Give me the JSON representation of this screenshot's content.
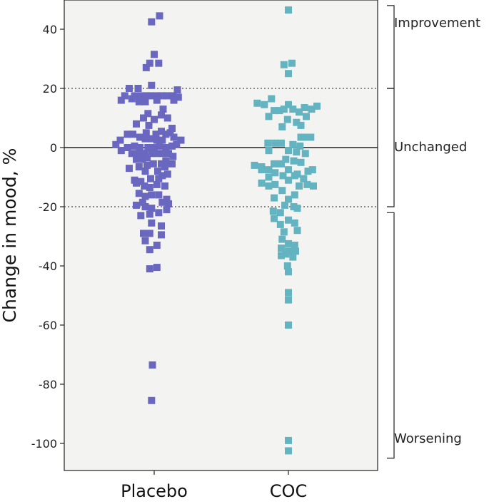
{
  "chart_data": {
    "type": "scatter",
    "ylabel": "Change in mood, %",
    "ylim": [
      -110,
      48
    ],
    "yticks": [
      40,
      20,
      0,
      -20,
      -40,
      -60,
      -80,
      -100
    ],
    "categories": [
      "Placebo",
      "COC"
    ],
    "reference_lines": [
      {
        "y": 20,
        "style": "dotted"
      },
      {
        "y": 0,
        "style": "solid"
      },
      {
        "y": -20,
        "style": "dotted"
      }
    ],
    "bands": [
      {
        "label": "Improvement",
        "from": 20,
        "to": 48
      },
      {
        "label": "Unchanged",
        "from": -20,
        "to": 20
      },
      {
        "label": "Worsening",
        "from": -105,
        "to": -22
      }
    ],
    "colors": {
      "Placebo": "#6a67c0",
      "COC": "#63b3c1",
      "plot_background": "#f3f3f2"
    },
    "series": [
      {
        "name": "Placebo",
        "color": "#6a67c0",
        "points": [
          [
            0.06,
            44.5
          ],
          [
            -0.03,
            42.5
          ],
          [
            0.0,
            31.5
          ],
          [
            -0.05,
            28.5
          ],
          [
            0.05,
            28.5
          ],
          [
            -0.09,
            27
          ],
          [
            -0.03,
            21
          ],
          [
            -0.28,
            20
          ],
          [
            -0.18,
            20
          ],
          [
            0.26,
            19.5
          ],
          [
            -0.33,
            17.5
          ],
          [
            -0.22,
            17.5
          ],
          [
            -0.15,
            17.5
          ],
          [
            -0.09,
            17.5
          ],
          [
            -0.04,
            17.5
          ],
          [
            0.03,
            17.5
          ],
          [
            0.09,
            17.5
          ],
          [
            0.14,
            17.5
          ],
          [
            0.21,
            17.5
          ],
          [
            0.27,
            17
          ],
          [
            -0.25,
            16.5
          ],
          [
            -0.37,
            16
          ],
          [
            0.22,
            16
          ],
          [
            0.03,
            16
          ],
          [
            -0.1,
            15.5
          ],
          [
            -0.17,
            15.5
          ],
          [
            0.1,
            13
          ],
          [
            -0.07,
            11.5
          ],
          [
            0.08,
            11
          ],
          [
            0.15,
            10
          ],
          [
            -0.12,
            10
          ],
          [
            0.0,
            9.5
          ],
          [
            -0.2,
            8
          ],
          [
            -0.06,
            7.5
          ],
          [
            0.2,
            6.5
          ],
          [
            0.08,
            5.5
          ],
          [
            0.18,
            5
          ],
          [
            -0.09,
            5
          ],
          [
            -0.24,
            4.5
          ],
          [
            -0.3,
            4.5
          ],
          [
            0.02,
            4.5
          ],
          [
            0.13,
            4.5
          ],
          [
            0.22,
            3.5
          ],
          [
            -0.16,
            3.5
          ],
          [
            -0.1,
            3
          ],
          [
            -0.03,
            3
          ],
          [
            0.03,
            2.5
          ],
          [
            -0.38,
            2.5
          ],
          [
            0.09,
            2.5
          ],
          [
            0.3,
            2.5
          ],
          [
            -0.43,
            1
          ],
          [
            -0.37,
            -1
          ],
          [
            -0.3,
            0
          ],
          [
            -0.22,
            0.5
          ],
          [
            -0.16,
            0
          ],
          [
            -0.07,
            0
          ],
          [
            0.0,
            0
          ],
          [
            0.06,
            0.5
          ],
          [
            0.13,
            0
          ],
          [
            0.2,
            0.5
          ],
          [
            0.25,
            1
          ],
          [
            -0.25,
            -2
          ],
          [
            -0.18,
            -2
          ],
          [
            -0.11,
            -2
          ],
          [
            -0.03,
            -2
          ],
          [
            0.03,
            -2
          ],
          [
            0.1,
            -2
          ],
          [
            0.16,
            -2
          ],
          [
            0.21,
            -3
          ],
          [
            -0.08,
            -3.5
          ],
          [
            -0.13,
            -4
          ],
          [
            -0.2,
            -4
          ],
          [
            0.13,
            -4.5
          ],
          [
            -0.01,
            -5.5
          ],
          [
            0.08,
            -5.5
          ],
          [
            0.2,
            -5.5
          ],
          [
            -0.08,
            -6
          ],
          [
            -0.17,
            -6.5
          ],
          [
            0.12,
            -6.5
          ],
          [
            -0.28,
            -7
          ],
          [
            0.04,
            -8
          ],
          [
            -0.1,
            -8
          ],
          [
            0.15,
            -9
          ],
          [
            0.09,
            -9.5
          ],
          [
            -0.04,
            -10.5
          ],
          [
            0.05,
            -10.5
          ],
          [
            -0.22,
            -11
          ],
          [
            -0.15,
            -11.5
          ],
          [
            -0.2,
            -12
          ],
          [
            0.03,
            -12.5
          ],
          [
            -0.11,
            -13
          ],
          [
            -0.05,
            -13.5
          ],
          [
            0.12,
            -13
          ],
          [
            -0.17,
            -15.5
          ],
          [
            -0.1,
            -16.5
          ],
          [
            -0.03,
            -16
          ],
          [
            0.05,
            -16
          ],
          [
            0.14,
            -17.5
          ],
          [
            -0.13,
            -18.5
          ],
          [
            0.09,
            -18.5
          ],
          [
            0.16,
            -19
          ],
          [
            -0.2,
            -19.5
          ],
          [
            -0.1,
            -20
          ],
          [
            -0.03,
            -20.5
          ],
          [
            0.14,
            -21
          ],
          [
            0.05,
            -22
          ],
          [
            -0.05,
            -22.5
          ],
          [
            -0.15,
            -23
          ],
          [
            -0.03,
            -25.5
          ],
          [
            0.08,
            -26.5
          ],
          [
            -0.12,
            -29
          ],
          [
            -0.05,
            -29
          ],
          [
            0.08,
            -29.5
          ],
          [
            -0.1,
            -31.5
          ],
          [
            0.03,
            -33
          ],
          [
            -0.05,
            -34.5
          ],
          [
            -0.05,
            -41
          ],
          [
            0.03,
            -40.5
          ],
          [
            -0.02,
            -73.5
          ],
          [
            -0.03,
            -85.5
          ]
        ]
      },
      {
        "name": "COC",
        "color": "#63b3c1",
        "points": [
          [
            0.0,
            46.5
          ],
          [
            -0.05,
            28
          ],
          [
            0.04,
            28.5
          ],
          [
            0.0,
            25
          ],
          [
            -0.35,
            15
          ],
          [
            -0.27,
            14.5
          ],
          [
            -0.19,
            16.5
          ],
          [
            0.0,
            14.5
          ],
          [
            -0.16,
            12.5
          ],
          [
            -0.1,
            12.5
          ],
          [
            -0.05,
            13
          ],
          [
            0.05,
            13
          ],
          [
            0.12,
            12
          ],
          [
            0.18,
            13.5
          ],
          [
            0.26,
            13
          ],
          [
            0.32,
            14
          ],
          [
            -0.22,
            10.5
          ],
          [
            0.2,
            10.5
          ],
          [
            0.09,
            8.5
          ],
          [
            0.14,
            7.5
          ],
          [
            -0.07,
            7
          ],
          [
            -0.01,
            9.5
          ],
          [
            0.14,
            3.5
          ],
          [
            0.19,
            3.5
          ],
          [
            0.25,
            3.5
          ],
          [
            -0.23,
            1.5
          ],
          [
            -0.15,
            1.5
          ],
          [
            -0.08,
            1.5
          ],
          [
            0.05,
            1
          ],
          [
            0.13,
            0.5
          ],
          [
            -0.22,
            -1
          ],
          [
            0.0,
            -1
          ],
          [
            0.09,
            -1.5
          ],
          [
            0.19,
            -2
          ],
          [
            -0.03,
            -4
          ],
          [
            0.06,
            -4.5
          ],
          [
            -0.38,
            -6
          ],
          [
            -0.3,
            -6.5
          ],
          [
            -0.16,
            -5.5
          ],
          [
            -0.08,
            -5.5
          ],
          [
            0.14,
            -5
          ],
          [
            -0.3,
            -7.5
          ],
          [
            -0.22,
            -7.5
          ],
          [
            0.0,
            -7.5
          ],
          [
            0.22,
            -8
          ],
          [
            0.27,
            -7.5
          ],
          [
            -0.15,
            -8.5
          ],
          [
            -0.06,
            -9.5
          ],
          [
            0.07,
            -9.5
          ],
          [
            0.1,
            -9
          ],
          [
            -0.22,
            -10
          ],
          [
            0.17,
            -10.5
          ],
          [
            -0.15,
            -12.5
          ],
          [
            0.0,
            -11
          ],
          [
            -0.3,
            -12
          ],
          [
            -0.22,
            -13
          ],
          [
            0.12,
            -13
          ],
          [
            0.21,
            -12.5
          ],
          [
            0.28,
            -13
          ],
          [
            -0.07,
            -14.5
          ],
          [
            0.07,
            -16
          ],
          [
            -0.16,
            -17
          ],
          [
            0.0,
            -17.5
          ],
          [
            -0.04,
            -19.5
          ],
          [
            0.06,
            -20
          ],
          [
            0.1,
            -20.5
          ],
          [
            -0.17,
            -21.5
          ],
          [
            -0.09,
            -22
          ],
          [
            -0.16,
            -24
          ],
          [
            0.0,
            -24.5
          ],
          [
            0.07,
            -25.5
          ],
          [
            -0.09,
            -26
          ],
          [
            -0.05,
            -28.5
          ],
          [
            0.1,
            -28
          ],
          [
            -0.07,
            -31
          ],
          [
            0.0,
            -32.5
          ],
          [
            0.07,
            -33
          ],
          [
            -0.08,
            -34
          ],
          [
            0.0,
            -35
          ],
          [
            0.08,
            -35
          ],
          [
            -0.03,
            -36
          ],
          [
            -0.08,
            -36.5
          ],
          [
            0.05,
            -37
          ],
          [
            -0.01,
            -40
          ],
          [
            0.0,
            -42
          ],
          [
            0.0,
            -49
          ],
          [
            0.0,
            -51.5
          ],
          [
            0.0,
            -60
          ],
          [
            0.0,
            -99
          ],
          [
            0.0,
            -102.5
          ]
        ]
      }
    ]
  }
}
